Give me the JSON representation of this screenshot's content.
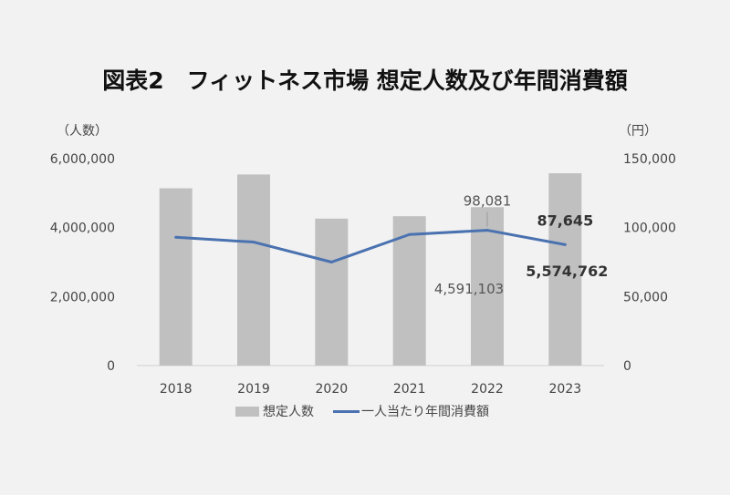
{
  "chart_data": {
    "type": "bar",
    "title": "図表2　フィットネス市場 想定人数及び年間消費額",
    "categories": [
      "2018",
      "2019",
      "2020",
      "2021",
      "2022",
      "2023"
    ],
    "series": [
      {
        "name": "想定人数",
        "type": "bar",
        "axis": "left",
        "color": "#c0c0c0",
        "values": [
          5140000,
          5540000,
          4260000,
          4330000,
          4591103,
          5574762
        ]
      },
      {
        "name": "一人当たり年間消費額",
        "type": "line",
        "axis": "right",
        "color": "#4a72b0",
        "values": [
          93000,
          89500,
          75000,
          95000,
          98081,
          87645
        ]
      }
    ],
    "yleft": {
      "unit": "（人数）",
      "ylim": [
        0,
        6000000
      ],
      "ticks": [
        0,
        2000000,
        4000000,
        6000000
      ],
      "tick_labels": [
        "0",
        "2,000,000",
        "4,000,000",
        "6,000,000"
      ]
    },
    "yright": {
      "unit": "（円）",
      "ylim": [
        0,
        150000
      ],
      "ticks": [
        0,
        50000,
        100000,
        150000
      ],
      "tick_labels": [
        "0",
        "50,000",
        "100,000",
        "150,000"
      ]
    },
    "annotations": [
      {
        "text": "98,081",
        "series": 1,
        "index": 4,
        "bold": false
      },
      {
        "text": "87,645",
        "series": 1,
        "index": 5,
        "bold": true
      },
      {
        "text": "4,591,103",
        "series": 0,
        "index": 4,
        "bold": false
      },
      {
        "text": "5,574,762",
        "series": 0,
        "index": 5,
        "bold": true
      }
    ],
    "legend": {
      "position": "bottom",
      "items": [
        "想定人数",
        "一人当たり年間消費額"
      ]
    },
    "grid": false
  }
}
